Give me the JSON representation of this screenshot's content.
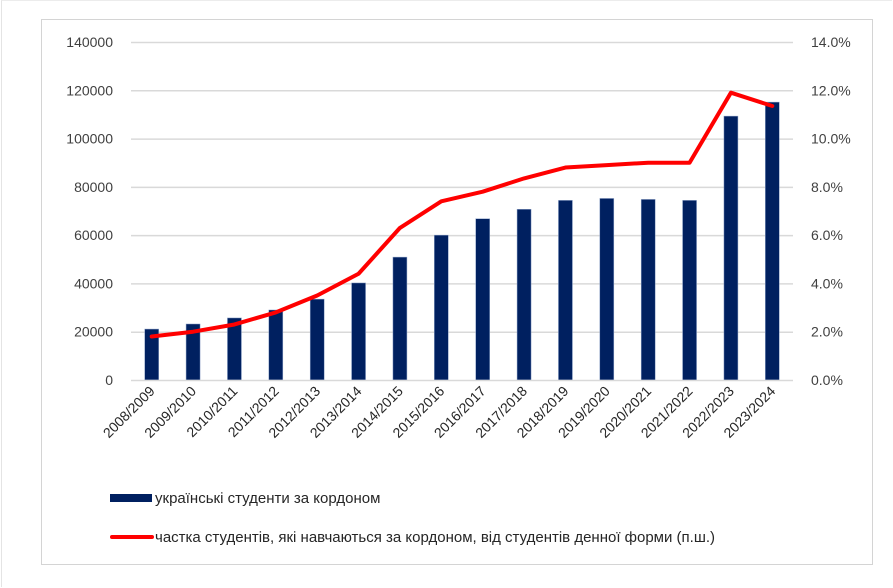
{
  "chart_data": {
    "type": "bar+line",
    "title": "",
    "categories": [
      "2008/2009",
      "2009/2010",
      "2010/2011",
      "2011/2012",
      "2012/2013",
      "2013/2014",
      "2014/2015",
      "2015/2016",
      "2016/2017",
      "2017/2018",
      "2018/2019",
      "2019/2020",
      "2020/2021",
      "2021/2022",
      "2022/2023",
      "2023/2024"
    ],
    "series": [
      {
        "name": "українські студенти за кордоном",
        "type": "bar",
        "axis": "left",
        "color": "#002060",
        "values": [
          21100,
          23200,
          25700,
          29000,
          33500,
          40200,
          50900,
          60000,
          66800,
          70700,
          74400,
          75200,
          74800,
          74400,
          109300,
          115100
        ]
      },
      {
        "name": "частка студентів, які навчаються за кордоном, від студентів денної форми (п.ш.)",
        "type": "line",
        "axis": "right",
        "color": "#ff0000",
        "values": [
          1.8,
          2.0,
          2.3,
          2.8,
          3.5,
          4.4,
          6.3,
          7.4,
          7.8,
          8.35,
          8.8,
          8.9,
          9.0,
          9.0,
          11.9,
          11.35
        ]
      }
    ],
    "xlabel": "",
    "ylabel": "",
    "ylim": [
      0,
      140000
    ],
    "y_ticks": [
      "0",
      "20000",
      "40000",
      "60000",
      "80000",
      "100000",
      "120000",
      "140000"
    ],
    "y2lim": [
      0,
      14
    ],
    "y2_ticks": [
      "0.0%",
      "2.0%",
      "4.0%",
      "6.0%",
      "8.0%",
      "10.0%",
      "12.0%",
      "14.0%"
    ],
    "grid": true,
    "legend_position": "bottom"
  },
  "legend": {
    "bar_label": "українські студенти за кордоном",
    "line_label": "частка студентів, які навчаються за кордоном, від студентів денної форми (п.ш.)"
  }
}
